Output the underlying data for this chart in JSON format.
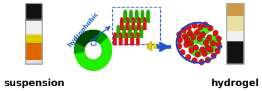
{
  "fig_bg": "#ffffff",
  "suspension_label": "suspension",
  "hydrogel_label": "hydrogel",
  "hydrophobic_label": "hydrophobic",
  "label_fontsize": 10,
  "label_fontweight": "bold",
  "hydrophobic_color": "#1a5fcc",
  "arrow_color": "#2255cc",
  "donut_color": "#22ee00",
  "donut_dark": "#007700",
  "rod_green": "#22aa00",
  "rod_red": "#dd1111",
  "ball_red": "#dd1111",
  "speaker_color": "#ddcc00",
  "main_arrow_color": "#2255cc",
  "swirl_color": "#2244bb",
  "vial_outline": "#aaaaaa",
  "vial_bg": "#d8d8d8"
}
